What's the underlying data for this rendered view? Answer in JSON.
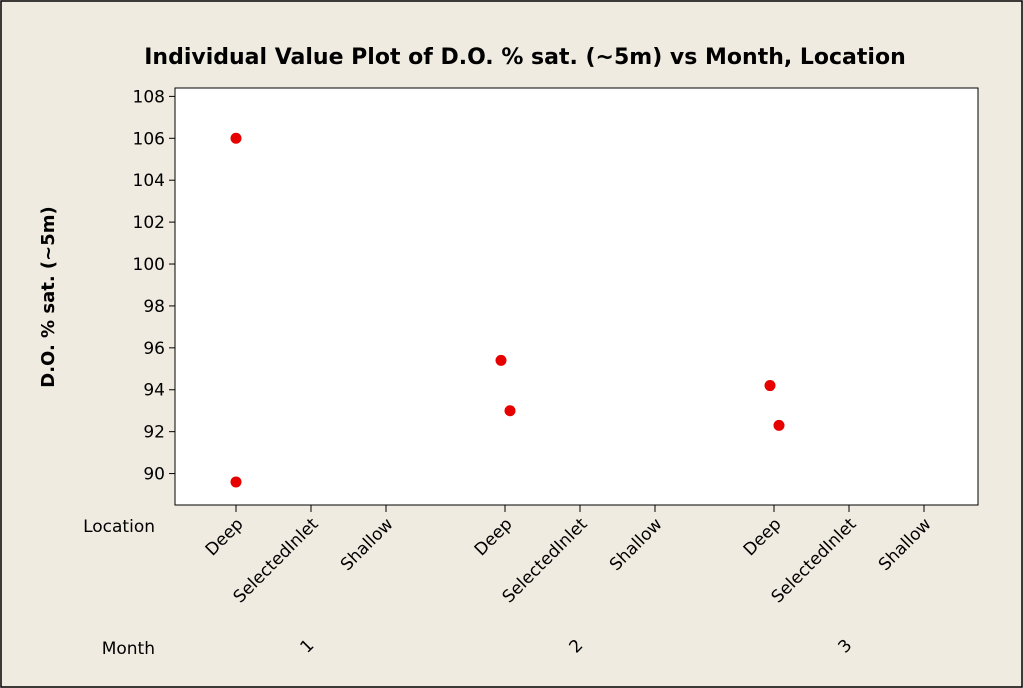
{
  "chart_data": {
    "type": "scatter",
    "title": "Individual Value Plot of D.O. % sat. (~5m) vs Month, Location",
    "y_label": "D.O. % sat. (~5m)",
    "x_row_labels": [
      "Location",
      "Month"
    ],
    "categories": [
      "Deep",
      "SelectedInlet",
      "Shallow",
      "Deep",
      "SelectedInlet",
      "Shallow",
      "Deep",
      "SelectedInlet",
      "Shallow"
    ],
    "groups": [
      "1",
      "2",
      "3"
    ],
    "values": [
      [
        106,
        89.6
      ],
      [],
      [],
      [
        95.4,
        93.0
      ],
      [],
      [],
      [
        94.2,
        92.3
      ],
      [],
      []
    ],
    "color": "#e60000",
    "ylim": [
      88.5,
      108.4
    ],
    "yticks": [
      90,
      92,
      94,
      96,
      98,
      100,
      102,
      104,
      106,
      108
    ]
  }
}
